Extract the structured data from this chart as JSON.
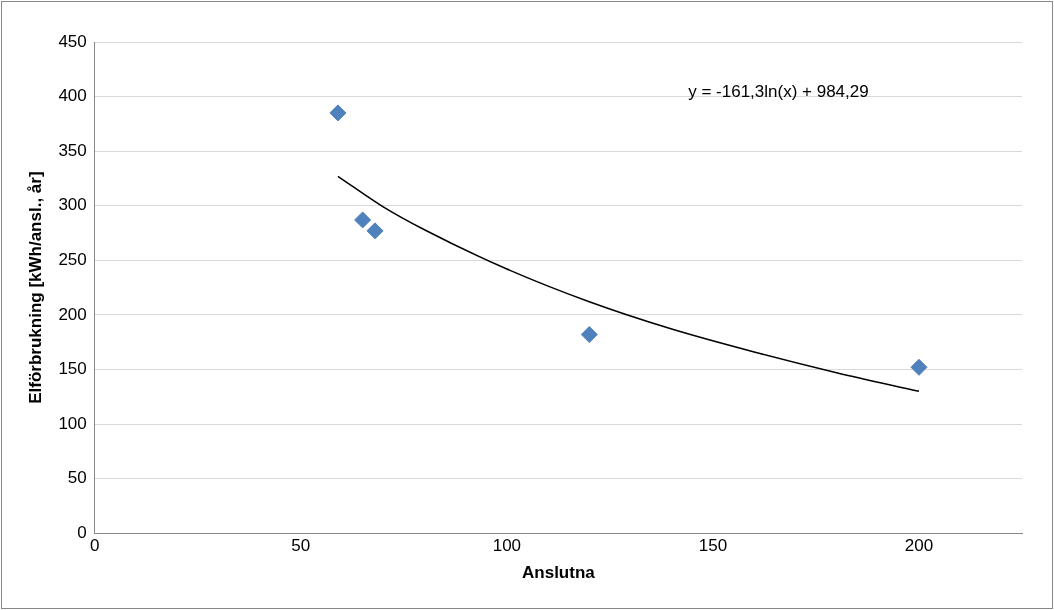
{
  "chart_data": {
    "type": "scatter",
    "xlabel": "Anslutna",
    "ylabel": "Elförbrukning [kWh/ansl., år]",
    "xlim": [
      0,
      225
    ],
    "xticks": [
      0,
      50,
      100,
      150,
      200
    ],
    "ylim": [
      0,
      450
    ],
    "yticks": [
      0,
      50,
      100,
      150,
      200,
      250,
      300,
      350,
      400,
      450
    ],
    "grid": "y",
    "legend": false,
    "marker": "diamond",
    "series": [
      {
        "color": "#4f81bd",
        "x": [
          59,
          65,
          68,
          120,
          200
        ],
        "values": [
          385,
          287,
          277,
          182,
          152
        ]
      },
      {
        "type": "line",
        "color": "#000000",
        "marker": "none",
        "x": [
          59,
          70,
          80,
          100,
          120,
          140,
          160,
          180,
          200
        ],
        "values": [
          327,
          299,
          278,
          242,
          212,
          187,
          166,
          147,
          130
        ]
      }
    ],
    "annotations": [
      "y = -161,3ln(x) + 984,29"
    ]
  }
}
